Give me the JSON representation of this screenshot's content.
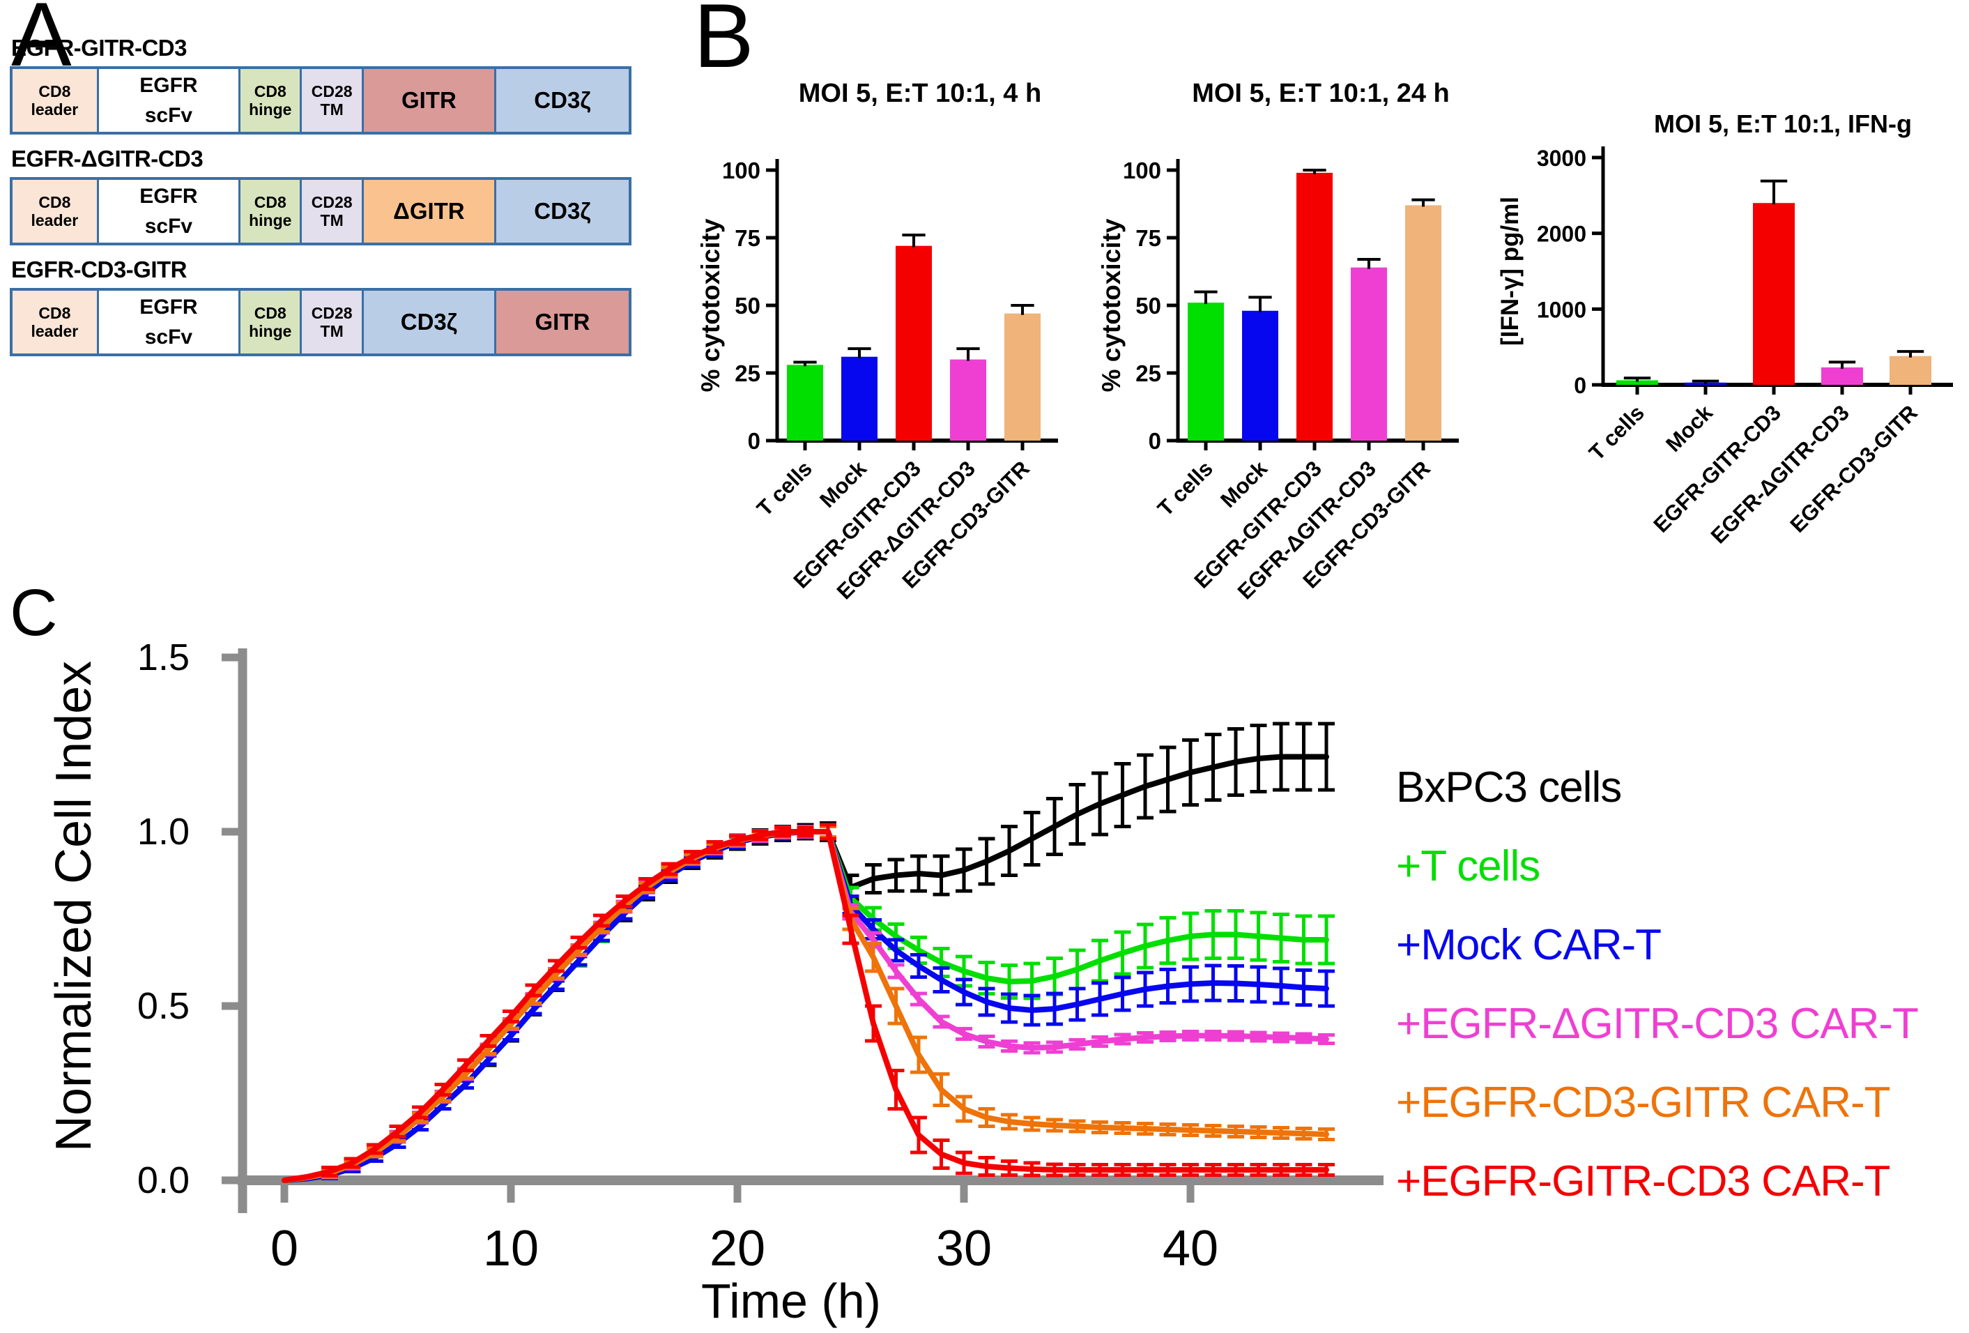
{
  "panel_a": {
    "label": "A",
    "border_color": "#3A6FA6",
    "constructs": [
      {
        "title": "EGFR-GITR-CD3",
        "segments": [
          {
            "label": "CD8 leader",
            "lines": [
              "CD8",
              "leader"
            ],
            "color": "#FBE5D6"
          },
          {
            "label": "EGFR scFv",
            "lines": [
              "EGFR",
              "scFv"
            ],
            "color": "#FFFFFF"
          },
          {
            "label": "CD8 hinge",
            "lines": [
              "CD8",
              "hinge"
            ],
            "color": "#D7E4BD"
          },
          {
            "label": "CD28 TM",
            "lines": [
              "CD28",
              "TM"
            ],
            "color": "#E4DFEC"
          },
          {
            "label": "GITR",
            "lines": [
              "GITR"
            ],
            "color": "#D99A98"
          },
          {
            "label": "CD3ζ",
            "lines": [
              "CD3ζ"
            ],
            "color": "#BACDE6"
          }
        ]
      },
      {
        "title": "EGFR-ΔGITR-CD3",
        "segments": [
          {
            "label": "CD8 leader",
            "lines": [
              "CD8",
              "leader"
            ],
            "color": "#FBE5D6"
          },
          {
            "label": "EGFR scFv",
            "lines": [
              "EGFR",
              "scFv"
            ],
            "color": "#FFFFFF"
          },
          {
            "label": "CD8 hinge",
            "lines": [
              "CD8",
              "hinge"
            ],
            "color": "#D7E4BD"
          },
          {
            "label": "CD28 TM",
            "lines": [
              "CD28",
              "TM"
            ],
            "color": "#E4DFEC"
          },
          {
            "label": "ΔGITR",
            "lines": [
              "ΔGITR"
            ],
            "color": "#FAC28F"
          },
          {
            "label": "CD3ζ",
            "lines": [
              "CD3ζ"
            ],
            "color": "#BACDE6"
          }
        ]
      },
      {
        "title": "EGFR-CD3-GITR",
        "segments": [
          {
            "label": "CD8 leader",
            "lines": [
              "CD8",
              "leader"
            ],
            "color": "#FBE5D6"
          },
          {
            "label": "EGFR scFv",
            "lines": [
              "EGFR",
              "scFv"
            ],
            "color": "#FFFFFF"
          },
          {
            "label": "CD8 hinge",
            "lines": [
              "CD8",
              "hinge"
            ],
            "color": "#D7E4BD"
          },
          {
            "label": "CD28 TM",
            "lines": [
              "CD28",
              "TM"
            ],
            "color": "#E4DFEC"
          },
          {
            "label": "CD3ζ",
            "lines": [
              "CD3ζ"
            ],
            "color": "#BACDE6"
          },
          {
            "label": "GITR",
            "lines": [
              "GITR"
            ],
            "color": "#D99A98"
          }
        ]
      }
    ]
  },
  "panel_b": {
    "label": "B"
  },
  "panel_c": {
    "label": "C",
    "legend": [
      {
        "label": "BxPC3 cells",
        "color": "#000000"
      },
      {
        "label": "+T cells",
        "color": "#00DF00"
      },
      {
        "label": "+Mock CAR-T",
        "color": "#0707EF"
      },
      {
        "label": "+EGFR-ΔGITR-CD3 CAR-T",
        "color": "#EF3FD2"
      },
      {
        "label": "+EGFR-CD3-GITR CAR-T",
        "color": "#EE7309"
      },
      {
        "label": "+EGFR-GITR-CD3 CAR-T",
        "color": "#F50000"
      }
    ]
  },
  "chart_data": [
    {
      "type": "bar",
      "title": "MOI 5, E:T 10:1, 4 h",
      "ylabel": "% cytotoxicity",
      "xlabel": "",
      "ylim": [
        0,
        100
      ],
      "yticks": [
        0,
        25,
        50,
        75,
        100
      ],
      "grid": false,
      "categories": [
        "T cells",
        "Mock",
        "EGFR-GITR-CD3",
        "EGFR-ΔGITR-CD3",
        "EGFR-CD3-GITR"
      ],
      "values": [
        28,
        31,
        72,
        30,
        47
      ],
      "errors": [
        1,
        3,
        4,
        4,
        3
      ],
      "colors": [
        "#00DF00",
        "#0707EF",
        "#F50000",
        "#EF3FD2",
        "#F0B379"
      ]
    },
    {
      "type": "bar",
      "title": "MOI 5, E:T 10:1, 24 h",
      "ylabel": "% cytotoxicity",
      "xlabel": "",
      "ylim": [
        0,
        100
      ],
      "yticks": [
        0,
        25,
        50,
        75,
        100
      ],
      "grid": false,
      "categories": [
        "T cells",
        "Mock",
        "EGFR-GITR-CD3",
        "EGFR-ΔGITR-CD3",
        "EGFR-CD3-GITR"
      ],
      "values": [
        51,
        48,
        99,
        64,
        87
      ],
      "errors": [
        4,
        5,
        1,
        3,
        2
      ],
      "colors": [
        "#00DF00",
        "#0707EF",
        "#F50000",
        "#EF3FD2",
        "#F0B379"
      ]
    },
    {
      "type": "bar",
      "title": "MOI 5, E:T 10:1, IFN-g",
      "ylabel": "[IFN-γ] pg/ml",
      "xlabel": "",
      "ylim": [
        0,
        3000
      ],
      "yticks": [
        0,
        1000,
        2000,
        3000
      ],
      "grid": false,
      "categories": [
        "T cells",
        "Mock",
        "EGFR-GITR-CD3",
        "EGFR-ΔGITR-CD3",
        "EGFR-CD3-GITR"
      ],
      "values": [
        60,
        30,
        2400,
        230,
        380
      ],
      "errors": [
        30,
        20,
        290,
        70,
        60
      ],
      "colors": [
        "#00DF00",
        "#0707EF",
        "#F50000",
        "#EF3FD2",
        "#F0B379"
      ]
    },
    {
      "type": "line",
      "title": "",
      "xlabel": "Time (h)",
      "ylabel": "Normalized Cell Index",
      "xlim": [
        0,
        46
      ],
      "ylim": [
        0,
        1.5
      ],
      "xticks": [
        0,
        10,
        20,
        30,
        40
      ],
      "yticks": [
        "0.0",
        "0.5",
        "1.0",
        "1.5"
      ],
      "grid": false,
      "legend_position": "right",
      "x": [
        0,
        1,
        2,
        3,
        4,
        5,
        6,
        7,
        8,
        9,
        10,
        11,
        12,
        13,
        14,
        15,
        16,
        17,
        18,
        19,
        20,
        21,
        22,
        23,
        24,
        25,
        26,
        27,
        28,
        29,
        30,
        31,
        32,
        33,
        34,
        35,
        36,
        37,
        38,
        39,
        40,
        41,
        42,
        43,
        44,
        45,
        46
      ],
      "series": [
        {
          "name": "BxPC3 cells",
          "color": "#000000",
          "y": [
            0,
            0.005,
            0.015,
            0.035,
            0.065,
            0.105,
            0.155,
            0.215,
            0.275,
            0.345,
            0.415,
            0.49,
            0.56,
            0.63,
            0.7,
            0.765,
            0.825,
            0.875,
            0.915,
            0.945,
            0.97,
            0.985,
            0.995,
            1,
            1,
            0.84,
            0.865,
            0.875,
            0.88,
            0.875,
            0.89,
            0.915,
            0.945,
            0.98,
            1.015,
            1.05,
            1.08,
            1.105,
            1.13,
            1.15,
            1.17,
            1.185,
            1.2,
            1.21,
            1.215,
            1.215,
            1.215
          ],
          "err": [
            0,
            0,
            0.01,
            0.01,
            0.01,
            0.01,
            0.01,
            0.01,
            0.01,
            0.015,
            0.015,
            0.015,
            0.015,
            0.015,
            0.015,
            0.02,
            0.02,
            0.02,
            0.02,
            0.02,
            0.02,
            0.02,
            0.02,
            0.02,
            0.025,
            0.035,
            0.04,
            0.045,
            0.05,
            0.055,
            0.06,
            0.065,
            0.07,
            0.075,
            0.08,
            0.085,
            0.088,
            0.09,
            0.09,
            0.092,
            0.093,
            0.094,
            0.095,
            0.095,
            0.095,
            0.095,
            0.095
          ]
        },
        {
          "name": "+T cells",
          "color": "#00DF00",
          "y": [
            0,
            0.005,
            0.015,
            0.035,
            0.065,
            0.105,
            0.155,
            0.215,
            0.275,
            0.345,
            0.415,
            0.49,
            0.56,
            0.63,
            0.7,
            0.765,
            0.825,
            0.875,
            0.915,
            0.945,
            0.97,
            0.985,
            0.995,
            1,
            1,
            0.81,
            0.75,
            0.7,
            0.66,
            0.625,
            0.6,
            0.58,
            0.57,
            0.572,
            0.585,
            0.605,
            0.63,
            0.652,
            0.672,
            0.688,
            0.7,
            0.705,
            0.705,
            0.7,
            0.695,
            0.69,
            0.69
          ],
          "err": [
            0,
            0,
            0.01,
            0.01,
            0.01,
            0.01,
            0.01,
            0.01,
            0.01,
            0.012,
            0.012,
            0.012,
            0.012,
            0.015,
            0.015,
            0.015,
            0.015,
            0.015,
            0.015,
            0.015,
            0.015,
            0.015,
            0.015,
            0.015,
            0.02,
            0.03,
            0.032,
            0.035,
            0.037,
            0.04,
            0.042,
            0.045,
            0.047,
            0.05,
            0.052,
            0.055,
            0.058,
            0.06,
            0.062,
            0.065,
            0.066,
            0.068,
            0.068,
            0.068,
            0.068,
            0.068,
            0.068
          ]
        },
        {
          "name": "+Mock CAR-T",
          "color": "#0707EF",
          "y": [
            0,
            0.005,
            0.015,
            0.035,
            0.065,
            0.105,
            0.155,
            0.215,
            0.275,
            0.345,
            0.415,
            0.49,
            0.56,
            0.63,
            0.7,
            0.765,
            0.825,
            0.875,
            0.915,
            0.945,
            0.97,
            0.985,
            0.995,
            1,
            1,
            0.79,
            0.72,
            0.66,
            0.615,
            0.575,
            0.54,
            0.512,
            0.494,
            0.488,
            0.492,
            0.505,
            0.52,
            0.535,
            0.548,
            0.557,
            0.563,
            0.566,
            0.565,
            0.562,
            0.558,
            0.553,
            0.55
          ],
          "err": [
            0,
            0,
            0.01,
            0.01,
            0.01,
            0.01,
            0.01,
            0.01,
            0.01,
            0.012,
            0.012,
            0.012,
            0.012,
            0.012,
            0.012,
            0.015,
            0.015,
            0.015,
            0.015,
            0.015,
            0.015,
            0.015,
            0.015,
            0.015,
            0.018,
            0.025,
            0.027,
            0.03,
            0.032,
            0.034,
            0.036,
            0.038,
            0.04,
            0.042,
            0.044,
            0.045,
            0.046,
            0.047,
            0.048,
            0.048,
            0.049,
            0.05,
            0.05,
            0.05,
            0.05,
            0.05,
            0.05
          ]
        },
        {
          "name": "+EGFR-ΔGITR-CD3 CAR-T",
          "color": "#EF3FD2",
          "y": [
            0,
            0.008,
            0.02,
            0.045,
            0.08,
            0.125,
            0.18,
            0.24,
            0.305,
            0.375,
            0.448,
            0.52,
            0.592,
            0.66,
            0.725,
            0.785,
            0.84,
            0.885,
            0.922,
            0.952,
            0.974,
            0.988,
            0.998,
            1,
            1,
            0.77,
            0.69,
            0.6,
            0.52,
            0.455,
            0.42,
            0.398,
            0.385,
            0.38,
            0.382,
            0.39,
            0.398,
            0.405,
            0.41,
            0.413,
            0.415,
            0.415,
            0.414,
            0.412,
            0.41,
            0.408,
            0.405
          ],
          "err": [
            0,
            0,
            0.012,
            0.012,
            0.012,
            0.015,
            0.015,
            0.015,
            0.015,
            0.015,
            0.015,
            0.015,
            0.015,
            0.015,
            0.015,
            0.015,
            0.015,
            0.015,
            0.015,
            0.015,
            0.015,
            0.015,
            0.015,
            0.015,
            0.015,
            0.02,
            0.02,
            0.018,
            0.016,
            0.015,
            0.015,
            0.015,
            0.014,
            0.014,
            0.014,
            0.013,
            0.013,
            0.013,
            0.013,
            0.012,
            0.012,
            0.012,
            0.012,
            0.012,
            0.012,
            0.012,
            0.012
          ]
        },
        {
          "name": "+EGFR-CD3-GITR CAR-T",
          "color": "#EE7309",
          "y": [
            0,
            0.008,
            0.02,
            0.045,
            0.08,
            0.125,
            0.18,
            0.24,
            0.305,
            0.375,
            0.448,
            0.52,
            0.592,
            0.66,
            0.725,
            0.785,
            0.84,
            0.885,
            0.922,
            0.952,
            0.974,
            0.988,
            0.998,
            1,
            1,
            0.75,
            0.64,
            0.5,
            0.36,
            0.26,
            0.205,
            0.18,
            0.168,
            0.162,
            0.158,
            0.155,
            0.152,
            0.15,
            0.148,
            0.146,
            0.144,
            0.142,
            0.14,
            0.138,
            0.136,
            0.134,
            0.132
          ],
          "err": [
            0,
            0,
            0.01,
            0.01,
            0.012,
            0.012,
            0.012,
            0.012,
            0.012,
            0.012,
            0.012,
            0.012,
            0.012,
            0.012,
            0.012,
            0.012,
            0.012,
            0.012,
            0.012,
            0.012,
            0.012,
            0.012,
            0.012,
            0.012,
            0.015,
            0.03,
            0.04,
            0.05,
            0.05,
            0.045,
            0.035,
            0.025,
            0.02,
            0.018,
            0.016,
            0.015,
            0.015,
            0.015,
            0.015,
            0.015,
            0.015,
            0.015,
            0.015,
            0.015,
            0.015,
            0.015,
            0.015
          ]
        },
        {
          "name": "+EGFR-GITR-CD3 CAR-T",
          "color": "#F50000",
          "y": [
            0,
            0.01,
            0.025,
            0.05,
            0.09,
            0.14,
            0.195,
            0.26,
            0.33,
            0.4,
            0.47,
            0.545,
            0.615,
            0.682,
            0.745,
            0.8,
            0.85,
            0.893,
            0.928,
            0.956,
            0.976,
            0.99,
            1,
            1,
            1,
            0.72,
            0.45,
            0.26,
            0.13,
            0.075,
            0.05,
            0.04,
            0.035,
            0.032,
            0.03,
            0.03,
            0.03,
            0.03,
            0.03,
            0.03,
            0.03,
            0.03,
            0.03,
            0.03,
            0.03,
            0.03,
            0.03
          ],
          "err": [
            0,
            0,
            0.012,
            0.012,
            0.012,
            0.015,
            0.015,
            0.015,
            0.015,
            0.015,
            0.015,
            0.015,
            0.015,
            0.015,
            0.015,
            0.015,
            0.015,
            0.015,
            0.015,
            0.015,
            0.012,
            0.012,
            0.012,
            0.012,
            0.02,
            0.04,
            0.05,
            0.055,
            0.05,
            0.04,
            0.03,
            0.025,
            0.02,
            0.018,
            0.016,
            0.015,
            0.015,
            0.015,
            0.015,
            0.015,
            0.015,
            0.015,
            0.015,
            0.015,
            0.015,
            0.015,
            0.015
          ]
        }
      ]
    }
  ],
  "axis_colors": {
    "panel_b_axis": "#000000",
    "panel_c_axis": "#8C8C8C"
  }
}
